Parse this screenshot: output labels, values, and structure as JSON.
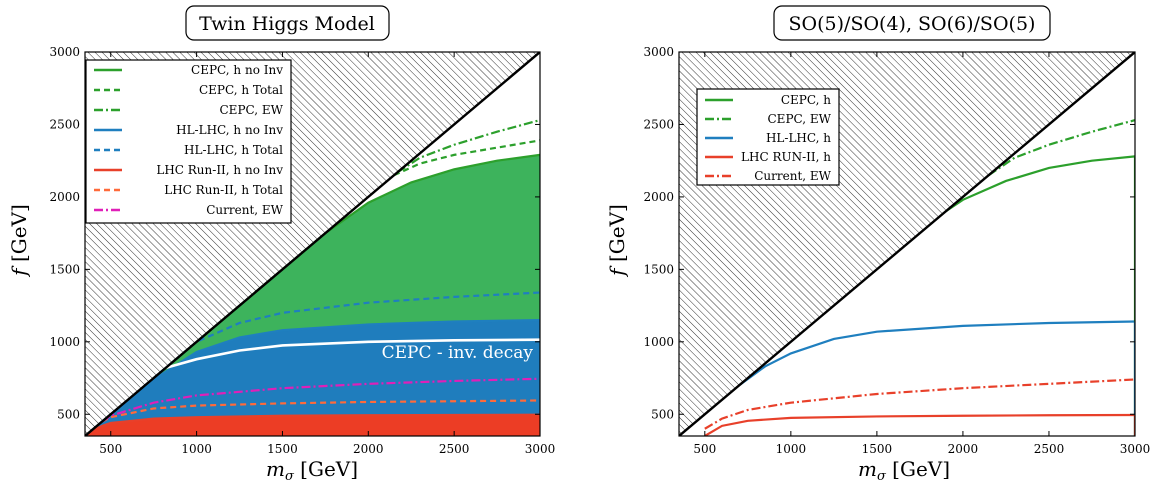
{
  "colors": {
    "green": "#2ca02c",
    "green_fill": "#3db35c",
    "blue": "#1f7fbf",
    "blue_fill": "#1f7dbd",
    "red": "#e8402a",
    "red_fill": "#ec3d25",
    "magenta": "#e01fb8",
    "dash_red": "#ff6a3a",
    "hatch": "#000000",
    "white": "#ffffff"
  },
  "chart_data": [
    {
      "type": "area",
      "title": "Twin Higgs Model",
      "xlabel": "m_σ [GeV]",
      "ylabel": "f [GeV]",
      "xlim": [
        350,
        3000
      ],
      "ylim": [
        350,
        3000
      ],
      "xticks": [
        500,
        1000,
        1500,
        2000,
        2500,
        3000
      ],
      "yticks": [
        500,
        1000,
        1500,
        2000,
        2500,
        3000
      ],
      "legend_position": "top-left",
      "annotation": "CEPC - inv. decay",
      "excluded_region": "f < m_σ (hatched)",
      "series": [
        {
          "name": "CEPC, h no Inv",
          "style": "solid",
          "color": "green",
          "fill": true,
          "x": [
            850,
            1000,
            1250,
            1500,
            1750,
            2000,
            2250,
            2500,
            2750,
            3000
          ],
          "y": [
            850,
            1000,
            1250,
            1500,
            1750,
            1960,
            2100,
            2190,
            2250,
            2290
          ]
        },
        {
          "name": "CEPC, h Total",
          "style": "dashed",
          "color": "green",
          "x": [
            2150,
            2300,
            2500,
            2750,
            3000
          ],
          "y": [
            2150,
            2230,
            2290,
            2340,
            2390
          ]
        },
        {
          "name": "CEPC, EW",
          "style": "dashdot",
          "color": "green",
          "x": [
            2170,
            2300,
            2500,
            2750,
            3000
          ],
          "y": [
            2170,
            2270,
            2360,
            2450,
            2530
          ]
        },
        {
          "name": "HL-LHC, h no Inv",
          "style": "solid",
          "color": "blue",
          "fill": true,
          "x": [
            380,
            500,
            750,
            1000,
            1250,
            1500,
            2000,
            2500,
            3000
          ],
          "y": [
            380,
            500,
            740,
            930,
            1030,
            1080,
            1120,
            1140,
            1150
          ]
        },
        {
          "name": "HL-LHC, h Total",
          "style": "dashed",
          "color": "blue",
          "x": [
            700,
            850,
            1000,
            1250,
            1500,
            2000,
            2500,
            3000
          ],
          "y": [
            700,
            850,
            1000,
            1130,
            1200,
            1270,
            1310,
            1340
          ]
        },
        {
          "name": "LHC Run-II, h no Inv",
          "style": "solid",
          "color": "red",
          "fill": true,
          "x": [
            380,
            450,
            500,
            750,
            1000,
            1500,
            2000,
            2500,
            3000
          ],
          "y": [
            380,
            420,
            440,
            470,
            480,
            490,
            493,
            495,
            497
          ]
        },
        {
          "name": "LHC Run-II, h Total",
          "style": "dashed",
          "color": "dash_red",
          "x": [
            450,
            500,
            750,
            1000,
            1500,
            2000,
            2500,
            3000
          ],
          "y": [
            450,
            480,
            540,
            560,
            575,
            585,
            590,
            595
          ]
        },
        {
          "name": "Current, EW",
          "style": "dashdot",
          "color": "magenta",
          "x": [
            450,
            500,
            750,
            1000,
            1500,
            2000,
            2500,
            3000
          ],
          "y": [
            450,
            490,
            580,
            630,
            680,
            710,
            730,
            745
          ]
        },
        {
          "name": "",
          "style": "solid",
          "color": "white",
          "x": [
            820,
            1000,
            1250,
            1500,
            2000,
            2500,
            3000
          ],
          "y": [
            820,
            880,
            940,
            975,
            1000,
            1010,
            1015
          ]
        }
      ]
    },
    {
      "type": "line",
      "title": "SO(5)/SO(4), SO(6)/SO(5)",
      "xlabel": "m_σ [GeV]",
      "ylabel": "f [GeV]",
      "xlim": [
        350,
        3000
      ],
      "ylim": [
        350,
        3000
      ],
      "xticks": [
        500,
        1000,
        1500,
        2000,
        2500,
        3000
      ],
      "yticks": [
        500,
        1000,
        1500,
        2000,
        2500,
        3000
      ],
      "legend_position": "top-left",
      "excluded_region": "f < m_σ (hatched)",
      "series": [
        {
          "name": "CEPC, h",
          "style": "solid",
          "color": "green",
          "x": [
            1900,
            2000,
            2250,
            2500,
            2750,
            3000
          ],
          "y": [
            1900,
            1980,
            2110,
            2200,
            2250,
            2280
          ]
        },
        {
          "name": "CEPC, EW",
          "style": "dashdot",
          "color": "green",
          "x": [
            2150,
            2300,
            2500,
            2750,
            3000
          ],
          "y": [
            2150,
            2270,
            2360,
            2450,
            2530
          ]
        },
        {
          "name": "HL-LHC, h",
          "style": "solid",
          "color": "blue",
          "x": [
            700,
            850,
            1000,
            1250,
            1500,
            2000,
            2500,
            3000
          ],
          "y": [
            700,
            830,
            920,
            1020,
            1070,
            1110,
            1130,
            1140
          ]
        },
        {
          "name": "LHC RUN-II, h",
          "style": "solid",
          "color": "red",
          "x": [
            500,
            600,
            750,
            1000,
            1500,
            2000,
            2500,
            3000
          ],
          "y": [
            350,
            420,
            455,
            475,
            485,
            490,
            493,
            495
          ]
        },
        {
          "name": "Current, EW",
          "style": "dashdot",
          "color": "red",
          "x": [
            500,
            600,
            750,
            1000,
            1500,
            2000,
            2500,
            3000
          ],
          "y": [
            400,
            470,
            530,
            580,
            640,
            680,
            710,
            740
          ]
        }
      ]
    }
  ]
}
